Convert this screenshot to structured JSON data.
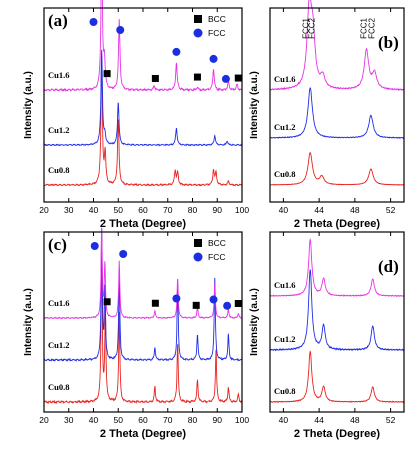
{
  "colors": {
    "Cu0.8": "#e8231f",
    "Cu1.2": "#1f2ee8",
    "Cu1.6": "#e633e6",
    "bcc_marker": "#000000",
    "fcc_marker": "#1c2fe0"
  },
  "chart_data": [
    {
      "panel": "(a)",
      "type": "line",
      "xlabel": "2 Theta (Degree)",
      "ylabel": "Intensity (a.u.)",
      "xlim": [
        20,
        100
      ],
      "xticks": [
        20,
        30,
        40,
        50,
        60,
        70,
        80,
        90,
        100
      ],
      "legend": [
        {
          "label": "BCC",
          "marker": "square"
        },
        {
          "label": "FCC",
          "marker": "circle"
        }
      ],
      "series": [
        {
          "name": "Cu0.8",
          "peaks": [
            [
              43.3,
              1.0
            ],
            [
              44.7,
              0.25
            ],
            [
              50.0,
              0.55
            ],
            [
              73.0,
              0.12
            ],
            [
              74.0,
              0.1
            ],
            [
              88.5,
              0.12
            ],
            [
              89.5,
              0.1
            ],
            [
              94.5,
              0.03
            ]
          ]
        },
        {
          "name": "Cu1.2",
          "peaks": [
            [
              43.3,
              1.0
            ],
            [
              44.6,
              0.1
            ],
            [
              50.0,
              0.45
            ],
            [
              73.5,
              0.18
            ],
            [
              89.0,
              0.1
            ],
            [
              94.0,
              0.04
            ]
          ]
        },
        {
          "name": "Cu1.6",
          "peaks": [
            [
              43.3,
              1.0
            ],
            [
              44.4,
              0.2
            ],
            [
              50.4,
              0.5
            ],
            [
              64.5,
              0.03
            ],
            [
              73.5,
              0.2
            ],
            [
              82.0,
              0.02
            ],
            [
              88.5,
              0.15
            ],
            [
              94.5,
              0.06
            ],
            [
              98.0,
              0.04
            ]
          ]
        }
      ],
      "markers": [
        {
          "type": "FCC",
          "x": 40.0,
          "series": "Cu1.6"
        },
        {
          "type": "FCC",
          "x": 50.8,
          "series": "Cu1.6"
        },
        {
          "type": "FCC",
          "x": 73.5,
          "series": "Cu1.6"
        },
        {
          "type": "FCC",
          "x": 88.5,
          "series": "Cu1.6"
        },
        {
          "type": "FCC",
          "x": 93.5,
          "series": "Cu1.6"
        },
        {
          "type": "BCC",
          "x": 45.5,
          "series": "Cu1.6"
        },
        {
          "type": "BCC",
          "x": 65.0,
          "series": "Cu1.6"
        },
        {
          "type": "BCC",
          "x": 82.0,
          "series": "Cu1.6"
        },
        {
          "type": "BCC",
          "x": 98.5,
          "series": "Cu1.6"
        }
      ]
    },
    {
      "panel": "(b)",
      "type": "line",
      "xlabel": "2 Theta (Degree)",
      "ylabel": "Intensity (a.u.)",
      "xlim": [
        38.5,
        53.5
      ],
      "xticks": [
        40,
        44,
        48,
        52
      ],
      "annotations": [
        {
          "text": "FCC1",
          "x": 42.8
        },
        {
          "text": "FCC2",
          "x": 43.5
        },
        {
          "text": "FCC1",
          "x": 49.3
        },
        {
          "text": "FCC2",
          "x": 50.2
        }
      ],
      "series": [
        {
          "name": "Cu0.8",
          "peaks": [
            [
              43.0,
              1.0
            ],
            [
              44.3,
              0.25
            ],
            [
              49.8,
              0.5
            ]
          ]
        },
        {
          "name": "Cu1.2",
          "peaks": [
            [
              43.0,
              1.0
            ],
            [
              49.8,
              0.45
            ]
          ]
        },
        {
          "name": "Cu1.6",
          "peaks": [
            [
              42.9,
              1.0
            ],
            [
              43.3,
              0.6
            ],
            [
              44.4,
              0.15
            ],
            [
              49.3,
              0.5
            ],
            [
              50.2,
              0.2
            ]
          ]
        }
      ]
    },
    {
      "panel": "(c)",
      "type": "line",
      "xlabel": "2 Theta (Degree)",
      "ylabel": "Intensity (a.u.)",
      "xlim": [
        20,
        100
      ],
      "xticks": [
        20,
        30,
        40,
        50,
        60,
        70,
        80,
        90,
        100
      ],
      "legend": [
        {
          "label": "BCC",
          "marker": "square"
        },
        {
          "label": "FCC",
          "marker": "circle"
        }
      ],
      "series": [
        {
          "name": "Cu0.8",
          "peaks": [
            [
              43.3,
              1.0
            ],
            [
              44.8,
              0.6
            ],
            [
              50.4,
              0.6
            ],
            [
              64.8,
              0.1
            ],
            [
              74.0,
              0.4
            ],
            [
              82.0,
              0.15
            ],
            [
              89.5,
              0.35
            ],
            [
              94.5,
              0.1
            ],
            [
              98.5,
              0.05
            ]
          ]
        },
        {
          "name": "Cu1.2",
          "peaks": [
            [
              43.3,
              1.0
            ],
            [
              44.6,
              0.55
            ],
            [
              50.4,
              0.7
            ],
            [
              64.8,
              0.1
            ],
            [
              74.0,
              0.6
            ],
            [
              82.0,
              0.2
            ],
            [
              89.0,
              0.65
            ],
            [
              94.5,
              0.2
            ]
          ]
        },
        {
          "name": "Cu1.6",
          "peaks": [
            [
              43.3,
              1.0
            ],
            [
              44.6,
              0.6
            ],
            [
              50.4,
              0.65
            ],
            [
              64.8,
              0.08
            ],
            [
              74.0,
              0.45
            ],
            [
              82.0,
              0.12
            ],
            [
              89.0,
              0.4
            ],
            [
              94.5,
              0.1
            ],
            [
              98.5,
              0.05
            ]
          ]
        }
      ],
      "markers": [
        {
          "type": "FCC",
          "x": 40.5,
          "series": "Cu1.6"
        },
        {
          "type": "FCC",
          "x": 52.0,
          "series": "Cu1.6"
        },
        {
          "type": "FCC",
          "x": 73.5,
          "series": "Cu1.6"
        },
        {
          "type": "FCC",
          "x": 88.5,
          "series": "Cu1.6"
        },
        {
          "type": "FCC",
          "x": 94.0,
          "series": "Cu1.6"
        },
        {
          "type": "BCC",
          "x": 45.5,
          "series": "Cu1.6"
        },
        {
          "type": "BCC",
          "x": 65.0,
          "series": "Cu1.6"
        },
        {
          "type": "BCC",
          "x": 81.5,
          "series": "Cu1.6"
        },
        {
          "type": "BCC",
          "x": 98.5,
          "series": "Cu1.6"
        }
      ]
    },
    {
      "panel": "(d)",
      "type": "line",
      "xlabel": "2 Theta (Degree)",
      "ylabel": "Intensity (a.u.)",
      "xlim": [
        38.5,
        53.5
      ],
      "xticks": [
        40,
        44,
        48,
        52
      ],
      "series": [
        {
          "name": "Cu0.8",
          "peaks": [
            [
              43.0,
              1.0
            ],
            [
              44.5,
              0.3
            ],
            [
              50.0,
              0.3
            ]
          ]
        },
        {
          "name": "Cu1.2",
          "peaks": [
            [
              43.0,
              1.0
            ],
            [
              44.5,
              0.3
            ],
            [
              50.0,
              0.3
            ]
          ]
        },
        {
          "name": "Cu1.6",
          "peaks": [
            [
              43.0,
              1.0
            ],
            [
              44.5,
              0.3
            ],
            [
              50.0,
              0.3
            ]
          ]
        }
      ]
    }
  ]
}
